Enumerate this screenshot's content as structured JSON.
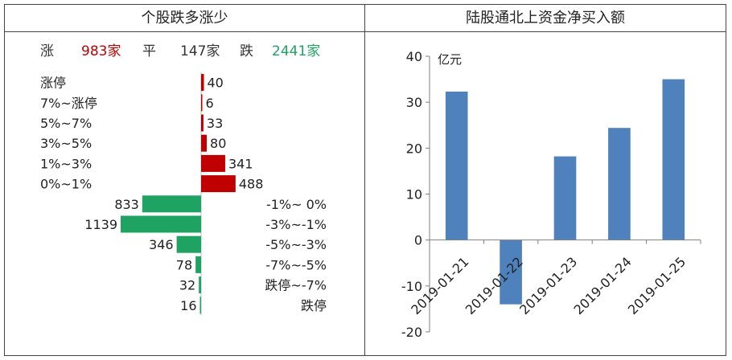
{
  "left_panel": {
    "title": "个股跌多涨少",
    "summary": {
      "up_label": "涨",
      "up_value": "983家",
      "flat_label": "平",
      "flat_value": "147家",
      "down_label": "跌",
      "down_value": "2441家"
    }
  },
  "right_panel": {
    "title": "陆股通北上资金净买入额"
  },
  "colors": {
    "up": "#c00000",
    "down": "#1ea362",
    "bar": "#4f81bd",
    "axis": "#7f7f7f"
  },
  "chart_data": [
    {
      "type": "bar",
      "orientation": "horizontal",
      "categories": [
        "涨停",
        "7%~涨停",
        "5%~7%",
        "3%~5%",
        "1%~3%",
        "0%~1%",
        "-1%~ 0%",
        "-3%~-1%",
        "-5%~-3%",
        "-7%~-5%",
        "跌停~-7%",
        "跌停"
      ],
      "values": [
        40,
        6,
        33,
        80,
        341,
        488,
        833,
        1139,
        346,
        78,
        32,
        16
      ],
      "direction": [
        "up",
        "up",
        "up",
        "up",
        "up",
        "up",
        "down",
        "down",
        "down",
        "down",
        "down",
        "down"
      ]
    },
    {
      "type": "bar",
      "categories": [
        "2019-01-21",
        "2019-01-22",
        "2019-01-23",
        "2019-01-24",
        "2019-01-25"
      ],
      "values": [
        32.3,
        -14.0,
        18.2,
        24.4,
        35.0
      ],
      "ylabel": "亿元",
      "ylim": [
        -20,
        40
      ],
      "yticks": [
        -20,
        -10,
        0,
        10,
        20,
        30,
        40
      ]
    }
  ]
}
